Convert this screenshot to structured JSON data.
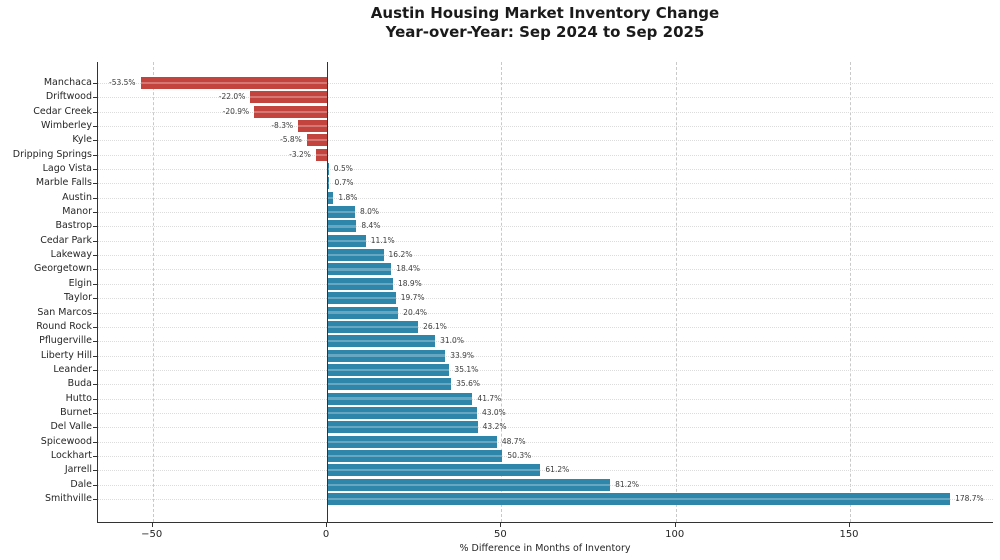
{
  "title": {
    "line1": "Austin Housing Market Inventory Change",
    "line2": "Year-over-Year: Sep 2024 to Sep 2025"
  },
  "chart_data": {
    "type": "bar",
    "orientation": "horizontal",
    "title": "Austin Housing Market Inventory Change Year-over-Year: Sep 2024 to Sep 2025",
    "xlabel": "% Difference in Months of Inventory",
    "categories": [
      "Manchaca",
      "Driftwood",
      "Cedar Creek",
      "Wimberley",
      "Kyle",
      "Dripping Springs",
      "Lago Vista",
      "Marble Falls",
      "Austin",
      "Manor",
      "Bastrop",
      "Cedar Park",
      "Lakeway",
      "Georgetown",
      "Elgin",
      "Taylor",
      "San Marcos",
      "Round Rock",
      "Pflugerville",
      "Liberty Hill",
      "Leander",
      "Buda",
      "Hutto",
      "Burnet",
      "Del Valle",
      "Spicewood",
      "Lockhart",
      "Jarrell",
      "Dale",
      "Smithville"
    ],
    "values": [
      -53.5,
      -22.0,
      -20.9,
      -8.3,
      -5.8,
      -3.2,
      0.5,
      0.7,
      1.8,
      8.0,
      8.4,
      11.1,
      16.2,
      18.4,
      18.9,
      19.7,
      20.4,
      26.1,
      31.0,
      33.9,
      35.1,
      35.6,
      41.7,
      43.0,
      43.2,
      48.7,
      50.3,
      61.2,
      81.2,
      178.7
    ],
    "value_labels": [
      "-53.5%",
      "-22.0%",
      "-20.9%",
      "-8.3%",
      "-5.8%",
      "-3.2%",
      "0.5%",
      "0.7%",
      "1.8%",
      "8.0%",
      "8.4%",
      "11.1%",
      "16.2%",
      "18.4%",
      "18.9%",
      "19.7%",
      "20.4%",
      "26.1%",
      "31.0%",
      "33.9%",
      "35.1%",
      "35.6%",
      "41.7%",
      "43.0%",
      "43.2%",
      "48.7%",
      "50.3%",
      "61.2%",
      "81.2%",
      "178.7%"
    ],
    "xticks": [
      -50,
      0,
      50,
      100,
      150
    ],
    "xtick_labels": [
      "−50",
      "0",
      "50",
      "100",
      "150"
    ],
    "xlim": [
      -65.7,
      191.3
    ],
    "grid": true,
    "legend": false,
    "colors": {
      "positive_bar": "#2E86AB",
      "negative_bar": "#C3443E",
      "spine": "#333333",
      "grid_vertical": "#c9c9c9",
      "grid_horizontal": "#dcdcdc",
      "zero_line": "#333333",
      "value_label": "#3d3d3d",
      "tick_label": "#262626",
      "title": "#1a1a1a"
    }
  }
}
